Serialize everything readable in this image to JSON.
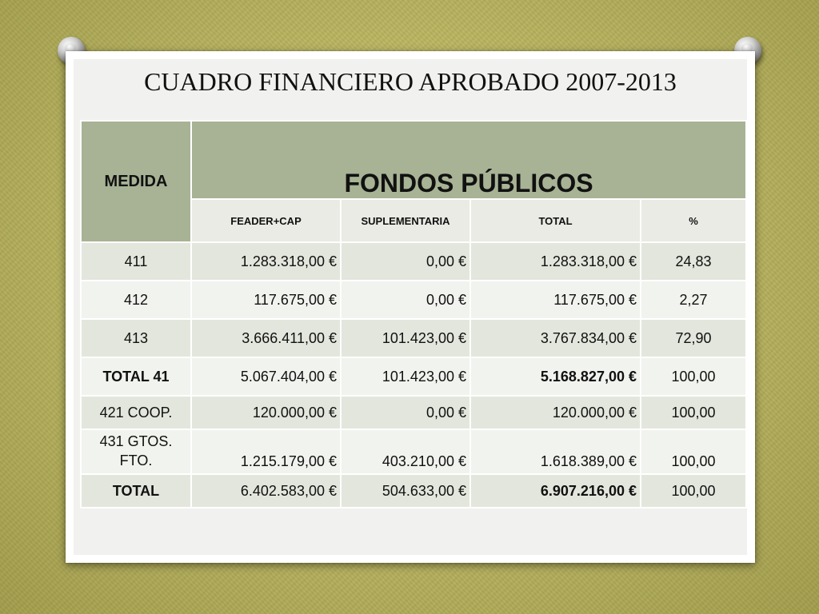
{
  "title": "CUADRO FINANCIERO APROBADO  2007-2013",
  "table": {
    "header_medida": "MEDIDA",
    "header_group": "FONDOS PÚBLICOS",
    "sub_headers": [
      "FEADER+CAP",
      "SUPLEMENTARIA",
      "TOTAL",
      "%"
    ],
    "rows": [
      {
        "medida": "411",
        "feader": "1.283.318,00 €",
        "supl": "0,00 €",
        "total": "1.283.318,00 €",
        "pct": "24,83"
      },
      {
        "medida": "412",
        "feader": "117.675,00 €",
        "supl": "0,00 €",
        "total": "117.675,00 €",
        "pct": "2,27"
      },
      {
        "medida": "413",
        "feader": "3.666.411,00 €",
        "supl": "101.423,00 €",
        "total": "3.767.834,00 €",
        "pct": "72,90"
      },
      {
        "medida": "TOTAL 41",
        "feader": "5.067.404,00 €",
        "supl": "101.423,00 €",
        "total": "5.168.827,00 €",
        "pct": "100,00"
      },
      {
        "medida": "421 COOP.",
        "feader": "120.000,00 €",
        "supl": "0,00 €",
        "total": "120.000,00 €",
        "pct": "100,00"
      },
      {
        "medida_line1": "431 GTOS.",
        "medida_line2": "FTO.",
        "feader": "1.215.179,00 €",
        "supl": "403.210,00 €",
        "total": "1.618.389,00 €",
        "pct": "100,00"
      },
      {
        "medida": "TOTAL",
        "feader": "6.402.583,00 €",
        "supl": "504.633,00 €",
        "total": "6.907.216,00 €",
        "pct": "100,00"
      }
    ]
  },
  "colors": {
    "header_bg": "#a7b394",
    "row_dark": "#e3e6dc",
    "row_light": "#f1f3ee",
    "background": "#b8b35e"
  }
}
